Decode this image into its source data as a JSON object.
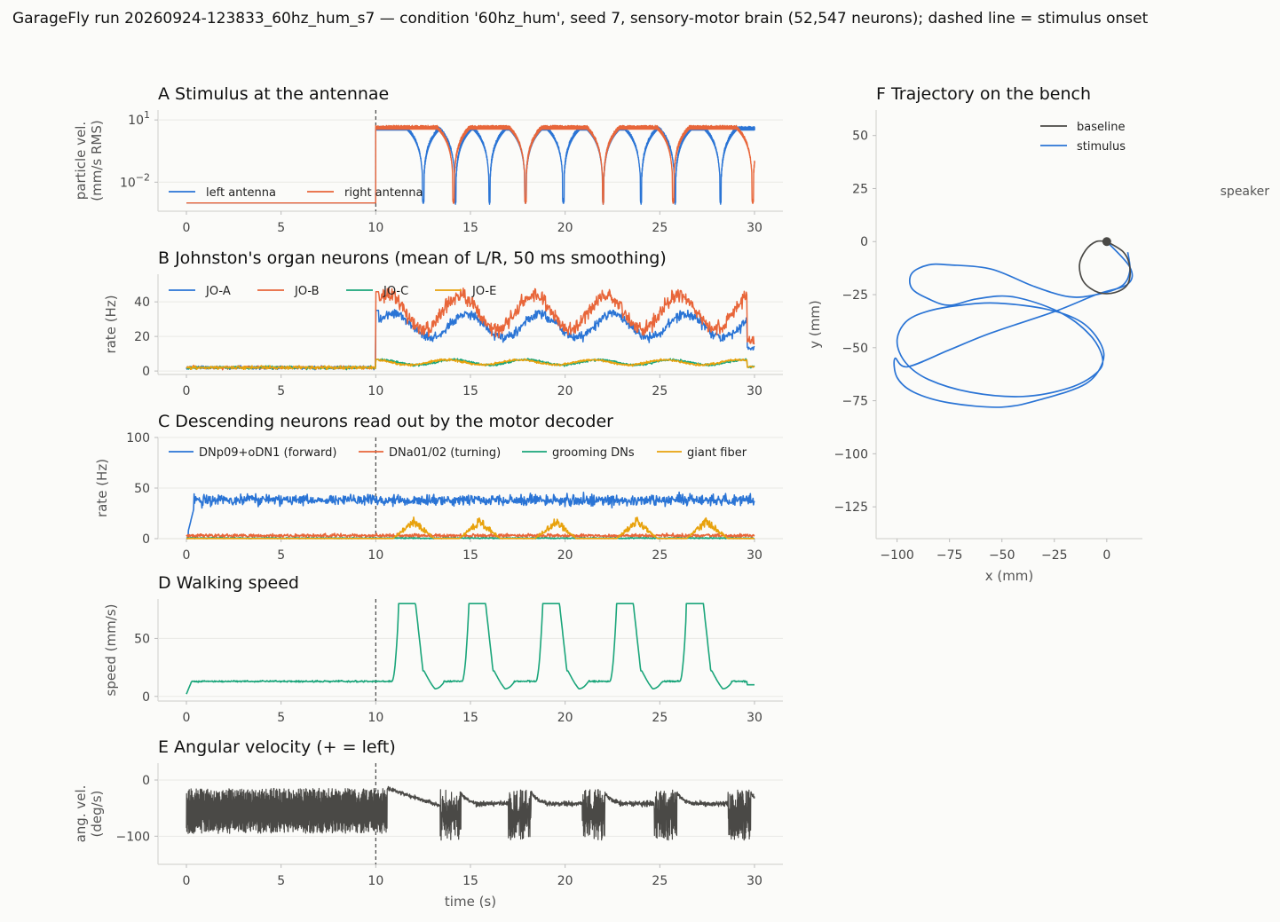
{
  "figure": {
    "suptitle": "GarageFly run 20260924-123833_60hz_hum_s7 — condition '60hz_hum', seed 7, sensory-motor brain (52,547 neurons); dashed line = stimulus onset"
  },
  "colors": {
    "blue": "#2a74d5",
    "orange": "#e8663a",
    "green": "#1aa57a",
    "gold": "#e8a20c",
    "dark": "#4a4946",
    "onset": "#444444"
  },
  "chart_data": [
    {
      "id": "A",
      "type": "line",
      "title": "A  Stimulus at the antennae",
      "ylabel_lines": [
        "particle vel.",
        "(mm/s RMS)"
      ],
      "xlabel": "",
      "yscale": "log",
      "xlim": [
        -1.5,
        31.5
      ],
      "ylim": [
        0.0004,
        30
      ],
      "xticks": [
        "0",
        "5",
        "10",
        "15",
        "20",
        "25",
        "30"
      ],
      "yticks": [
        {
          "value": 0.01,
          "base": "10",
          "exp": "−2"
        },
        {
          "value": 10,
          "base": "10",
          "exp": "1"
        }
      ],
      "grid": true,
      "legend": "lower-left",
      "onset": 10,
      "pre_level": 0.001,
      "series": [
        {
          "name": "left antenna",
          "color": "blue",
          "peak": 4.5,
          "null_times": [
            12.5,
            14.2,
            16.0,
            17.9,
            19.9,
            22.0,
            24.0,
            25.8,
            28.2
          ]
        },
        {
          "name": "right antenna",
          "color": "orange",
          "peak": 5.0,
          "null_times": [
            14.1,
            17.9,
            22.0,
            25.7,
            29.9
          ]
        }
      ]
    },
    {
      "id": "B",
      "type": "line",
      "title": "B  Johnston's organ neurons (mean of L/R, 50 ms smoothing)",
      "ylabel": "rate (Hz)",
      "xlabel": "",
      "xlim": [
        -1.5,
        31.5
      ],
      "ylim": [
        -2,
        56
      ],
      "xticks": [
        "0",
        "5",
        "10",
        "15",
        "20",
        "25",
        "30"
      ],
      "yticks": [
        0,
        20,
        40
      ],
      "grid": true,
      "legend": "upper-left",
      "onset": 10,
      "series": [
        {
          "name": "JO-A",
          "color": "blue",
          "baseline": 2,
          "mean_after": 26,
          "amplitude": 7
        },
        {
          "name": "JO-B",
          "color": "orange",
          "baseline": 2,
          "mean_after": 34,
          "amplitude": 10
        },
        {
          "name": "JO-C",
          "color": "green",
          "baseline": 2,
          "mean_after": 5,
          "amplitude": 1.5
        },
        {
          "name": "JO-E",
          "color": "gold",
          "baseline": 2,
          "mean_after": 5,
          "amplitude": 1.5
        }
      ]
    },
    {
      "id": "C",
      "type": "line",
      "title": "C  Descending neurons read out by the motor decoder",
      "ylabel": "rate (Hz)",
      "xlabel": "",
      "xlim": [
        -1.5,
        31.5
      ],
      "ylim": [
        0,
        100
      ],
      "xticks": [
        "0",
        "5",
        "10",
        "15",
        "20",
        "25",
        "30"
      ],
      "yticks": [
        0,
        50,
        100
      ],
      "grid": true,
      "legend": "upper",
      "onset": 10,
      "series": [
        {
          "name": "DNp09+oDN1 (forward)",
          "color": "blue",
          "mean": 38,
          "amplitude": 5
        },
        {
          "name": "DNa01/02 (turning)",
          "color": "orange",
          "mean": 3,
          "amplitude": 1.5
        },
        {
          "name": "grooming DNs",
          "color": "green",
          "mean": 0.5,
          "amplitude": 0.5
        },
        {
          "name": "giant fiber",
          "color": "gold",
          "burst_times": [
            12,
            15.5,
            19.5,
            23.8,
            27.5
          ],
          "burst_peak": 22
        }
      ]
    },
    {
      "id": "D",
      "type": "line",
      "title": "D  Walking speed",
      "ylabel": "speed (mm/s)",
      "xlabel": "",
      "xlim": [
        -1.5,
        31.5
      ],
      "ylim": [
        -4,
        84
      ],
      "xticks": [
        "0",
        "5",
        "10",
        "15",
        "20",
        "25",
        "30"
      ],
      "yticks": [
        0,
        50
      ],
      "grid": true,
      "onset": 10,
      "series": [
        {
          "name": "",
          "color": "green",
          "baseline": 13,
          "burst_starts": [
            11.2,
            14.9,
            18.8,
            22.7,
            26.4
          ],
          "burst_width": 0.9,
          "burst_peak": 80
        }
      ]
    },
    {
      "id": "E",
      "type": "line",
      "title": "E  Angular velocity (+ = left)",
      "ylabel_lines": [
        "ang. vel.",
        "(deg/s)"
      ],
      "xlabel": "time (s)",
      "xlim": [
        -1.5,
        31.5
      ],
      "ylim": [
        -150,
        30
      ],
      "xticks": [
        "0",
        "5",
        "10",
        "15",
        "20",
        "25",
        "30"
      ],
      "yticks": [
        0,
        -100
      ],
      "ytick_labels": [
        "0",
        "−100"
      ],
      "grid": true,
      "onset": 10,
      "series": [
        {
          "name": "",
          "color": "dark",
          "pre_mean": -55,
          "pre_amplitude": 40,
          "post_mean": -42,
          "turn_windows": [
            13.9,
            17.6,
            21.5,
            25.3,
            29.2
          ]
        }
      ]
    },
    {
      "id": "F",
      "type": "line",
      "title": "F  Trajectory on the bench",
      "xlabel": "x (mm)",
      "ylabel": "y (mm)",
      "xlim": [
        -110,
        17
      ],
      "ylim": [
        -140,
        62
      ],
      "xticks": [
        -100,
        -75,
        -50,
        -25,
        0
      ],
      "xtick_labels": [
        "−100",
        "−75",
        "−50",
        "−25",
        "0"
      ],
      "yticks": [
        50,
        25,
        0,
        -25,
        -50,
        -75,
        -100,
        -125
      ],
      "ytick_labels": [
        "50",
        "25",
        "0",
        "−25",
        "−50",
        "−75",
        "−100",
        "−125"
      ],
      "legend": "upper-right",
      "annotation": "speaker",
      "start": [
        0,
        0
      ],
      "series": [
        {
          "name": "baseline",
          "color": "dark",
          "points": [
            [
              0,
              0
            ],
            [
              8,
              -5
            ],
            [
              11,
              -12
            ],
            [
              10,
              -20
            ],
            [
              4,
              -24
            ],
            [
              -4,
              -24
            ],
            [
              -11,
              -19
            ],
            [
              -13,
              -11
            ],
            [
              -10,
              -4
            ],
            [
              -5,
              0
            ],
            [
              0,
              0
            ]
          ]
        },
        {
          "name": "stimulus",
          "color": "blue",
          "points": [
            [
              0,
              0
            ],
            [
              11,
              -12
            ],
            [
              10,
              -20
            ],
            [
              -5,
              -25
            ],
            [
              -25,
              -33
            ],
            [
              -55,
              -43
            ],
            [
              -75,
              -51
            ],
            [
              -95,
              -59
            ],
            [
              -101,
              -55
            ],
            [
              -100,
              -64
            ],
            [
              -92,
              -71
            ],
            [
              -75,
              -76
            ],
            [
              -50,
              -78
            ],
            [
              -30,
              -74
            ],
            [
              -10,
              -67
            ],
            [
              -2,
              -57
            ],
            [
              -3,
              -48
            ],
            [
              -12,
              -38
            ],
            [
              -28,
              -32
            ],
            [
              -52,
              -29
            ],
            [
              -70,
              -30
            ],
            [
              -86,
              -33
            ],
            [
              -96,
              -38
            ],
            [
              -100,
              -47
            ],
            [
              -96,
              -57
            ],
            [
              -85,
              -65
            ],
            [
              -65,
              -71
            ],
            [
              -40,
              -73
            ],
            [
              -18,
              -69
            ],
            [
              -5,
              -62
            ],
            [
              -2,
              -55
            ],
            [
              -8,
              -44
            ],
            [
              -23,
              -33
            ],
            [
              -45,
              -26
            ],
            [
              -62,
              -27
            ],
            [
              -75,
              -30
            ],
            [
              -85,
              -27
            ],
            [
              -93,
              -22
            ],
            [
              -93,
              -15
            ],
            [
              -85,
              -11
            ],
            [
              -75,
              -11
            ],
            [
              -55,
              -13
            ],
            [
              -35,
              -21
            ],
            [
              -18,
              -26
            ],
            [
              -5,
              -25
            ],
            [
              7,
              -21
            ],
            [
              11,
              -14
            ],
            [
              10,
              -5
            ]
          ]
        }
      ]
    }
  ]
}
